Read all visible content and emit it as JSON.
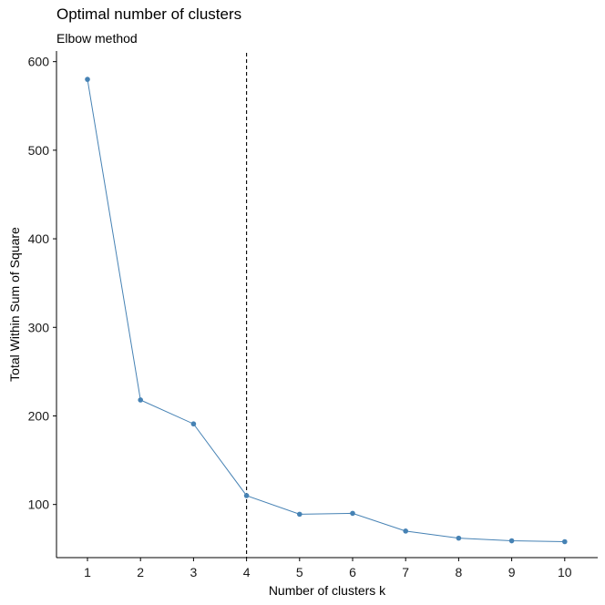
{
  "chart_data": {
    "type": "line",
    "title": "Optimal number of clusters",
    "subtitle": "Elbow method",
    "xlabel": "Number of clusters k",
    "ylabel": "Total Within Sum of Square",
    "categories": [
      "1",
      "2",
      "3",
      "4",
      "5",
      "6",
      "7",
      "8",
      "9",
      "10"
    ],
    "series": [
      {
        "values": [
          580,
          218,
          191,
          110,
          89,
          90,
          70,
          62,
          59,
          58
        ]
      }
    ],
    "ylim": [
      40,
      612
    ],
    "yticks": [
      100,
      200,
      300,
      400,
      500,
      600
    ],
    "vline_at": 4,
    "colors": {
      "line": "#4682B4",
      "vline": "#000000",
      "axis": "#000000"
    },
    "grid": false,
    "legend": "none"
  }
}
